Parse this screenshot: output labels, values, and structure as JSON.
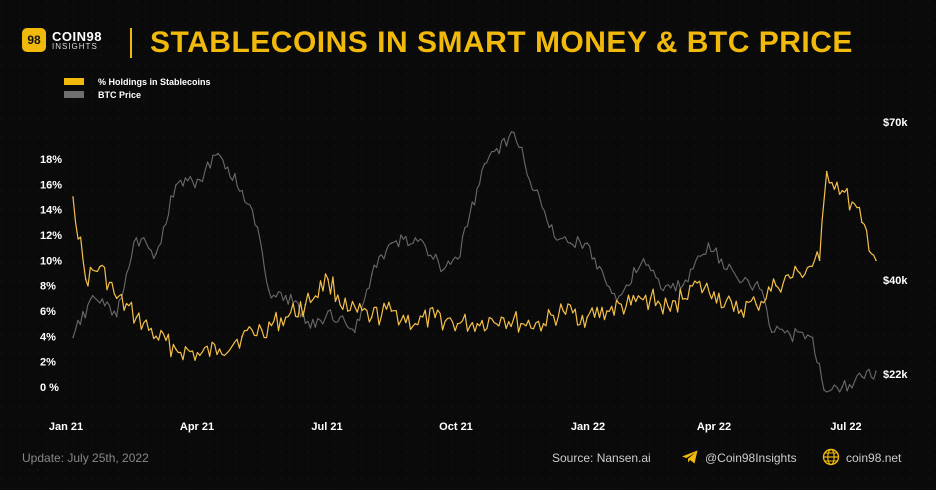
{
  "header": {
    "logo_mark": "98",
    "logo_name": "COIN98",
    "logo_sub": "INSIGHTS",
    "title": "STABLECOINS IN SMART MONEY & BTC PRICE"
  },
  "footer": {
    "update": "Update: July 25th, 2022",
    "source": "Source: Nansen.ai",
    "telegram": "@Coin98Insights",
    "website": "coin98.net"
  },
  "chart_data": {
    "type": "line",
    "title": "STABLECOINS IN SMART MONEY & BTC PRICE",
    "x_tick_labels": [
      "Jan 21",
      "Apr 21",
      "Jul 21",
      "Oct 21",
      "Jan 22",
      "Apr 22",
      "Jul 22"
    ],
    "x_range": [
      "2021-01-01",
      "2022-07-25"
    ],
    "y_left": {
      "ticks": [
        "0 %",
        "2%",
        "4%",
        "6%",
        "8%",
        "10%",
        "12%",
        "14%",
        "16%",
        "18%"
      ],
      "range": [
        0,
        18
      ]
    },
    "y_right": {
      "ticks": [
        "$22k",
        "$40k",
        "$70k"
      ],
      "values": [
        22000,
        40000,
        70000
      ]
    },
    "legend_position": "top-left",
    "grid": false,
    "series": [
      {
        "name": "% Holdings in Stablecoins",
        "color": "#f0b90b",
        "axis": "left",
        "x": [
          "2021-01-01",
          "2021-01-10",
          "2021-01-20",
          "2021-02-01",
          "2021-02-15",
          "2021-03-01",
          "2021-03-15",
          "2021-04-01",
          "2021-04-15",
          "2021-05-01",
          "2021-05-15",
          "2021-06-01",
          "2021-06-15",
          "2021-07-01",
          "2021-07-15",
          "2021-08-01",
          "2021-08-15",
          "2021-09-01",
          "2021-09-15",
          "2021-10-01",
          "2021-10-15",
          "2021-11-01",
          "2021-11-15",
          "2021-12-01",
          "2021-12-15",
          "2022-01-01",
          "2022-01-15",
          "2022-02-01",
          "2022-02-15",
          "2022-03-01",
          "2022-03-15",
          "2022-04-01",
          "2022-04-15",
          "2022-05-01",
          "2022-05-15",
          "2022-06-01",
          "2022-06-15",
          "2022-06-20",
          "2022-07-01",
          "2022-07-15",
          "2022-07-25"
        ],
        "values": [
          15.0,
          8.5,
          9.5,
          7.0,
          5.5,
          4.0,
          3.0,
          2.5,
          3.0,
          4.0,
          4.5,
          5.5,
          6.5,
          8.5,
          6.0,
          5.5,
          6.0,
          5.0,
          5.5,
          5.0,
          5.0,
          5.5,
          5.0,
          5.0,
          6.0,
          5.5,
          6.0,
          6.5,
          7.0,
          6.0,
          8.0,
          7.5,
          6.0,
          6.5,
          8.0,
          9.0,
          10.0,
          17.0,
          15.5,
          13.0,
          10.0
        ]
      },
      {
        "name": "BTC Price",
        "color": "#808080",
        "axis": "right",
        "x": [
          "2021-01-01",
          "2021-01-15",
          "2021-02-01",
          "2021-02-15",
          "2021-03-01",
          "2021-03-15",
          "2021-04-01",
          "2021-04-14",
          "2021-05-01",
          "2021-05-12",
          "2021-05-20",
          "2021-06-01",
          "2021-06-22",
          "2021-07-01",
          "2021-07-20",
          "2021-08-01",
          "2021-08-15",
          "2021-09-01",
          "2021-09-21",
          "2021-10-01",
          "2021-10-20",
          "2021-11-10",
          "2021-11-25",
          "2021-12-05",
          "2021-12-20",
          "2022-01-01",
          "2022-01-22",
          "2022-02-10",
          "2022-02-24",
          "2022-03-10",
          "2022-03-28",
          "2022-04-10",
          "2022-04-25",
          "2022-05-05",
          "2022-05-12",
          "2022-05-25",
          "2022-06-10",
          "2022-06-18",
          "2022-07-01",
          "2022-07-15",
          "2022-07-25"
        ],
        "values": [
          29000,
          37000,
          33000,
          48000,
          45000,
          58000,
          59000,
          64000,
          57000,
          50000,
          38000,
          37000,
          31000,
          34000,
          30000,
          41000,
          47000,
          48000,
          42000,
          44000,
          62000,
          68000,
          57000,
          50000,
          47000,
          47000,
          36000,
          44000,
          38000,
          39000,
          47000,
          42000,
          40000,
          38000,
          30000,
          29500,
          29000,
          19000,
          19500,
          21500,
          22500
        ]
      }
    ]
  }
}
